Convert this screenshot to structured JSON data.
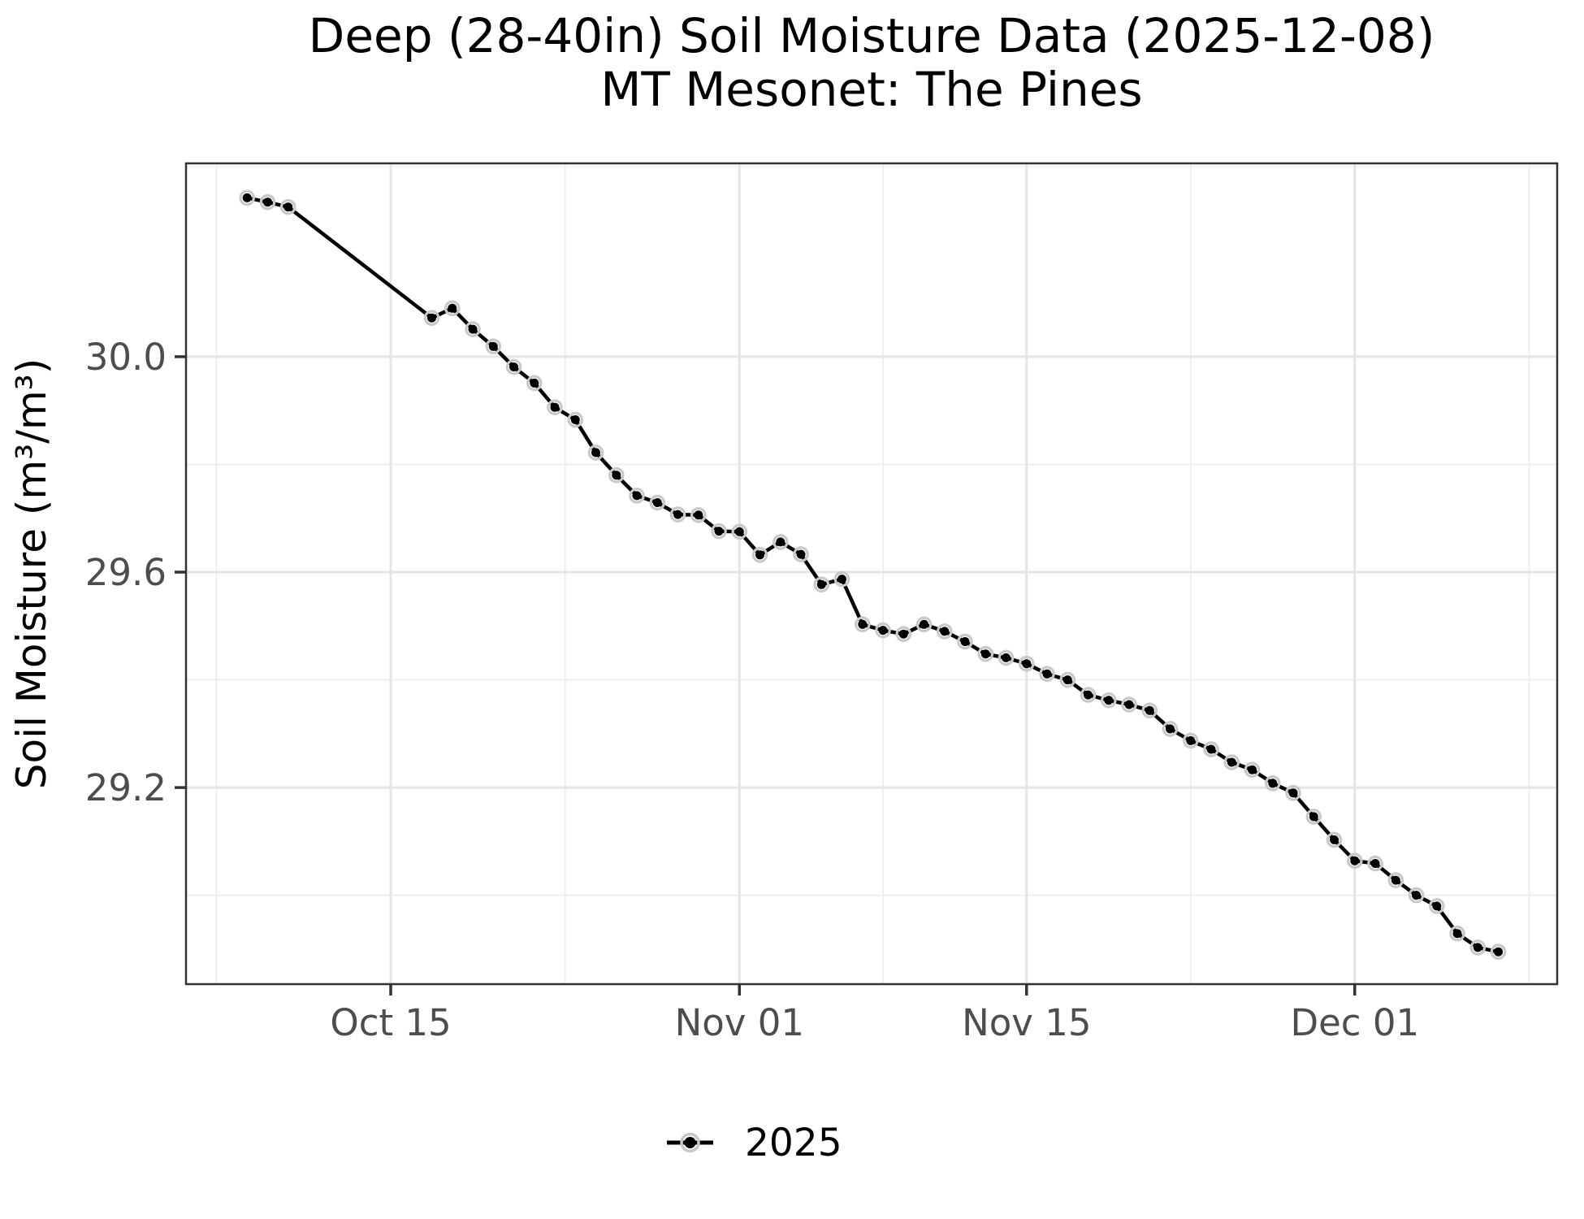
{
  "chart_data": {
    "type": "line",
    "title": "Deep (28-40in) Soil Moisture Data (2025-12-08)",
    "subtitle": "MT Mesonet: The Pines",
    "xlabel": "",
    "ylabel": "Soil Moisture (m³/m³)",
    "legend_position": "bottom",
    "grid": true,
    "x_origin": "2025-10-15",
    "xlim_day_offsets": [
      -9.98,
      56.87
    ],
    "ylim": [
      28.835,
      30.359
    ],
    "x_ticks": [
      {
        "label": "Oct 15",
        "date": "2025-10-15"
      },
      {
        "label": "Nov 01",
        "date": "2025-11-01"
      },
      {
        "label": "Nov 15",
        "date": "2025-11-15"
      },
      {
        "label": "Dec 01",
        "date": "2025-12-01"
      }
    ],
    "x_minor_day_offsets": [
      -8.5,
      8.5,
      24,
      39,
      55.5
    ],
    "y_ticks": [
      {
        "label": "30.0",
        "value": 30.0
      },
      {
        "label": "29.6",
        "value": 29.6
      },
      {
        "label": "29.2",
        "value": 29.2
      }
    ],
    "y_minor": [
      29.8,
      29.4,
      29.0
    ],
    "series": [
      {
        "name": "2025",
        "color": "#000000",
        "halo_color": "#c9c9c9",
        "points": [
          [
            "2025-10-08",
            30.295
          ],
          [
            "2025-10-09",
            30.287
          ],
          [
            "2025-10-10",
            30.278
          ],
          [
            "2025-10-17",
            30.072
          ],
          [
            "2025-10-18",
            30.09
          ],
          [
            "2025-10-19",
            30.051
          ],
          [
            "2025-10-20",
            30.019
          ],
          [
            "2025-10-21",
            29.981
          ],
          [
            "2025-10-22",
            29.951
          ],
          [
            "2025-10-23",
            29.906
          ],
          [
            "2025-10-24",
            29.883
          ],
          [
            "2025-10-25",
            29.822
          ],
          [
            "2025-10-26",
            29.78
          ],
          [
            "2025-10-27",
            29.742
          ],
          [
            "2025-10-28",
            29.729
          ],
          [
            "2025-10-29",
            29.707
          ],
          [
            "2025-10-30",
            29.706
          ],
          [
            "2025-10-31",
            29.676
          ],
          [
            "2025-11-01",
            29.675
          ],
          [
            "2025-11-02",
            29.632
          ],
          [
            "2025-11-03",
            29.656
          ],
          [
            "2025-11-04",
            29.633
          ],
          [
            "2025-11-05",
            29.577
          ],
          [
            "2025-11-06",
            29.587
          ],
          [
            "2025-11-07",
            29.503
          ],
          [
            "2025-11-08",
            29.492
          ],
          [
            "2025-11-09",
            29.485
          ],
          [
            "2025-11-10",
            29.503
          ],
          [
            "2025-11-11",
            29.49
          ],
          [
            "2025-11-12",
            29.471
          ],
          [
            "2025-11-13",
            29.448
          ],
          [
            "2025-11-14",
            29.441
          ],
          [
            "2025-11-15",
            29.43
          ],
          [
            "2025-11-16",
            29.411
          ],
          [
            "2025-11-17",
            29.4
          ],
          [
            "2025-11-18",
            29.372
          ],
          [
            "2025-11-19",
            29.362
          ],
          [
            "2025-11-20",
            29.354
          ],
          [
            "2025-11-21",
            29.343
          ],
          [
            "2025-11-22",
            29.309
          ],
          [
            "2025-11-23",
            29.287
          ],
          [
            "2025-11-24",
            29.271
          ],
          [
            "2025-11-25",
            29.247
          ],
          [
            "2025-11-26",
            29.233
          ],
          [
            "2025-11-27",
            29.208
          ],
          [
            "2025-11-28",
            29.19
          ],
          [
            "2025-11-29",
            29.146
          ],
          [
            "2025-11-30",
            29.103
          ],
          [
            "2025-12-01",
            29.064
          ],
          [
            "2025-12-02",
            29.059
          ],
          [
            "2025-12-03",
            29.028
          ],
          [
            "2025-12-04",
            29.0
          ],
          [
            "2025-12-05",
            28.98
          ],
          [
            "2025-12-06",
            28.929
          ],
          [
            "2025-12-07",
            28.903
          ],
          [
            "2025-12-08",
            28.895
          ]
        ]
      }
    ],
    "colors": {
      "panel_background": "#ffffff",
      "panel_border": "#333333",
      "grid_major": "#e5e5e5",
      "grid_minor": "#efefef",
      "tick": "#333333",
      "tick_label": "#4d4d4d"
    }
  },
  "legend": {
    "items": [
      {
        "label": "2025"
      }
    ]
  }
}
